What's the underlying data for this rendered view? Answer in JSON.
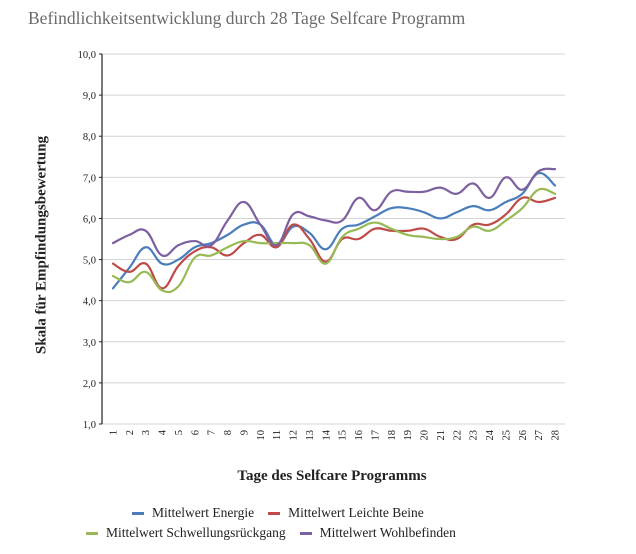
{
  "chart_data": {
    "type": "line",
    "title": "Befindlichkeitsentwicklung durch 28 Tage Selfcare Programm",
    "xlabel": "Tage des Selfcare Programms",
    "ylabel": "Skala für Empfindungsbewertung",
    "ylim": [
      1.0,
      10.0
    ],
    "y_ticks": [
      "1,0",
      "2,0",
      "3,0",
      "4,0",
      "5,0",
      "6,0",
      "7,0",
      "8,0",
      "9,0",
      "10,0"
    ],
    "grid": true,
    "legend_position": "bottom",
    "categories": [
      "1",
      "2",
      "3",
      "4",
      "5",
      "6",
      "7",
      "8",
      "9",
      "10",
      "11",
      "12",
      "13",
      "14",
      "15",
      "16",
      "17",
      "18",
      "19",
      "20",
      "21",
      "22",
      "23",
      "24",
      "25",
      "26",
      "27",
      "28"
    ],
    "series": [
      {
        "name": "Mittelwert Energie",
        "color": "#4a7ebb",
        "values": [
          4.3,
          4.8,
          5.3,
          4.9,
          5.0,
          5.3,
          5.4,
          5.6,
          5.85,
          5.85,
          5.35,
          5.8,
          5.65,
          5.25,
          5.75,
          5.85,
          6.05,
          6.25,
          6.25,
          6.15,
          6.0,
          6.15,
          6.3,
          6.2,
          6.4,
          6.6,
          7.1,
          6.8
        ]
      },
      {
        "name": "Mittelwert Leichte Beine",
        "color": "#be4b48",
        "values": [
          4.9,
          4.7,
          4.9,
          4.3,
          4.85,
          5.2,
          5.3,
          5.1,
          5.4,
          5.6,
          5.3,
          5.85,
          5.5,
          4.95,
          5.5,
          5.5,
          5.75,
          5.7,
          5.7,
          5.75,
          5.55,
          5.5,
          5.85,
          5.85,
          6.1,
          6.5,
          6.4,
          6.5
        ]
      },
      {
        "name": "Mittelwert Schwellungsrückgang",
        "color": "#98b954",
        "values": [
          4.6,
          4.45,
          4.7,
          4.25,
          4.35,
          5.05,
          5.1,
          5.3,
          5.45,
          5.4,
          5.4,
          5.4,
          5.35,
          4.9,
          5.55,
          5.75,
          5.9,
          5.75,
          5.6,
          5.55,
          5.5,
          5.55,
          5.8,
          5.7,
          5.95,
          6.25,
          6.7,
          6.6
        ]
      },
      {
        "name": "Mittelwert Wohlbefinden",
        "color": "#7d60a0",
        "values": [
          5.4,
          5.6,
          5.7,
          5.1,
          5.35,
          5.45,
          5.35,
          5.95,
          6.4,
          5.85,
          5.35,
          6.1,
          6.05,
          5.95,
          5.95,
          6.5,
          6.2,
          6.65,
          6.65,
          6.65,
          6.75,
          6.6,
          6.85,
          6.5,
          7.0,
          6.7,
          7.15,
          7.2
        ]
      }
    ]
  }
}
